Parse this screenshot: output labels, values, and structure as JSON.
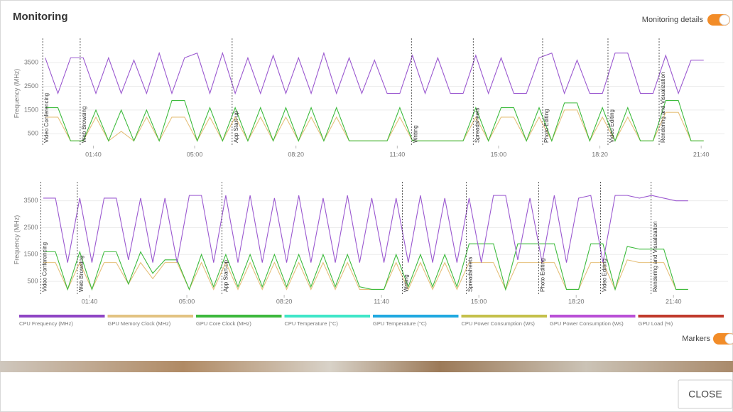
{
  "header": {
    "title": "Monitoring"
  },
  "monitoring_details": {
    "label": "Monitoring details",
    "on": true
  },
  "chart_data": [
    {
      "type": "line",
      "y_label": "Frequency (MHz)",
      "grid": true,
      "xlim": [
        -3,
        1346
      ],
      "ylim": [
        0,
        4400
      ],
      "yticks": [
        500,
        1500,
        2500,
        3500
      ],
      "xticks": [
        {
          "value": 100,
          "label": "01:40"
        },
        {
          "value": 300,
          "label": "05:00"
        },
        {
          "value": 500,
          "label": "08:20"
        },
        {
          "value": 700,
          "label": "11:40"
        },
        {
          "value": 900,
          "label": "15:00"
        },
        {
          "value": 1100,
          "label": "18:20"
        },
        {
          "value": 1300,
          "label": "21:40"
        }
      ],
      "markers": [
        {
          "x": 0,
          "label": "Video Conferencing"
        },
        {
          "x": 74,
          "label": "Web Browsing"
        },
        {
          "x": 374,
          "label": "App Start-up"
        },
        {
          "x": 728,
          "label": "Writing"
        },
        {
          "x": 850,
          "label": "Spreadsheets"
        },
        {
          "x": 987,
          "label": "Photo Editing"
        },
        {
          "x": 1116,
          "label": "Video Editing"
        },
        {
          "x": 1217,
          "label": "Rendering and Visualization"
        }
      ],
      "x": [
        5,
        30,
        55,
        80,
        105,
        130,
        155,
        180,
        205,
        230,
        255,
        280,
        305,
        330,
        355,
        380,
        405,
        430,
        455,
        480,
        505,
        530,
        555,
        580,
        605,
        630,
        655,
        680,
        705,
        730,
        755,
        780,
        805,
        830,
        855,
        880,
        905,
        930,
        955,
        980,
        1005,
        1030,
        1055,
        1080,
        1105,
        1130,
        1155,
        1180,
        1205,
        1230,
        1255,
        1280,
        1305
      ],
      "series": [
        {
          "color": "#e6c07b",
          "values": [
            1200,
            1200,
            200,
            200,
            1200,
            200,
            600,
            200,
            1200,
            200,
            1200,
            1200,
            200,
            1200,
            200,
            1200,
            200,
            1200,
            200,
            1200,
            200,
            1200,
            200,
            1200,
            200,
            200,
            200,
            200,
            1200,
            200,
            200,
            200,
            200,
            200,
            1200,
            200,
            1200,
            1200,
            200,
            1200,
            200,
            1500,
            1500,
            200,
            1200,
            200,
            1200,
            200,
            200,
            1400,
            1400,
            200,
            200
          ]
        },
        {
          "color": "#3dbb3d",
          "values": [
            1600,
            1600,
            200,
            200,
            1500,
            200,
            1500,
            200,
            1500,
            200,
            1900,
            1900,
            200,
            1600,
            200,
            1600,
            200,
            1600,
            200,
            1600,
            200,
            1600,
            200,
            1600,
            200,
            200,
            200,
            200,
            1600,
            200,
            200,
            200,
            200,
            200,
            1600,
            200,
            1600,
            1600,
            200,
            1600,
            200,
            1800,
            1800,
            200,
            1600,
            200,
            1600,
            200,
            200,
            1900,
            1900,
            200,
            200
          ]
        },
        {
          "color": "#9b59d0",
          "values": [
            3700,
            2200,
            3700,
            3700,
            2200,
            3700,
            2200,
            3600,
            2200,
            3900,
            2200,
            3700,
            3900,
            2200,
            3900,
            2200,
            3700,
            2200,
            3800,
            2200,
            3700,
            2200,
            3900,
            2200,
            3700,
            2200,
            3600,
            2200,
            2200,
            3800,
            2200,
            3700,
            2200,
            2200,
            3800,
            2200,
            3700,
            2200,
            2200,
            3700,
            3900,
            2200,
            3600,
            2200,
            2200,
            3900,
            3900,
            2200,
            2200,
            3800,
            2200,
            3600,
            3600
          ]
        }
      ]
    },
    {
      "type": "line",
      "y_label": "Frequency (MHz)",
      "grid": true,
      "xlim": [
        0,
        1412
      ],
      "ylim": [
        0,
        4100
      ],
      "yticks": [
        500,
        1500,
        2500,
        3500
      ],
      "xticks": [
        {
          "value": 100,
          "label": "01:40"
        },
        {
          "value": 300,
          "label": "05:00"
        },
        {
          "value": 500,
          "label": "08:20"
        },
        {
          "value": 700,
          "label": "11:40"
        },
        {
          "value": 900,
          "label": "15:00"
        },
        {
          "value": 1100,
          "label": "18:20"
        },
        {
          "value": 1300,
          "label": "21:40"
        }
      ],
      "markers": [
        {
          "x": 0,
          "label": "Video Conferencing"
        },
        {
          "x": 75,
          "label": "Web Browsing"
        },
        {
          "x": 372,
          "label": "App Start-up"
        },
        {
          "x": 743,
          "label": "Writing"
        },
        {
          "x": 874,
          "label": "Spreadsheets"
        },
        {
          "x": 1023,
          "label": "Photo Editing"
        },
        {
          "x": 1150,
          "label": "Video Editing"
        },
        {
          "x": 1254,
          "label": "Rendering and Visualization"
        }
      ],
      "x": [
        5,
        30,
        55,
        80,
        105,
        130,
        155,
        180,
        205,
        230,
        255,
        280,
        305,
        330,
        355,
        380,
        405,
        430,
        455,
        480,
        505,
        530,
        555,
        580,
        605,
        630,
        655,
        680,
        705,
        730,
        755,
        780,
        805,
        830,
        855,
        880,
        905,
        930,
        955,
        980,
        1005,
        1030,
        1055,
        1080,
        1105,
        1130,
        1155,
        1180,
        1205,
        1230,
        1255,
        1280,
        1305,
        1330
      ],
      "series": [
        {
          "color": "#e6c07b",
          "values": [
            1200,
            1200,
            200,
            1200,
            200,
            1200,
            1200,
            400,
            1200,
            600,
            1200,
            1200,
            200,
            1200,
            200,
            1200,
            200,
            1200,
            200,
            1200,
            200,
            1200,
            200,
            1200,
            200,
            1200,
            200,
            200,
            200,
            1200,
            200,
            1200,
            200,
            1200,
            200,
            1200,
            1200,
            1200,
            200,
            1200,
            1200,
            1200,
            1200,
            200,
            200,
            1200,
            1200,
            200,
            1300,
            1200,
            1200,
            1200,
            200,
            200
          ]
        },
        {
          "color": "#3dbb3d",
          "values": [
            1600,
            1600,
            200,
            1600,
            200,
            1600,
            1600,
            400,
            1600,
            800,
            1300,
            1300,
            200,
            1500,
            300,
            1500,
            300,
            1500,
            300,
            1500,
            300,
            1500,
            300,
            1500,
            300,
            1500,
            300,
            200,
            200,
            1500,
            300,
            1500,
            300,
            1500,
            300,
            1900,
            1900,
            1900,
            200,
            1900,
            1900,
            1900,
            1900,
            200,
            200,
            1900,
            1900,
            200,
            1800,
            1700,
            1700,
            1700,
            200,
            200
          ]
        },
        {
          "color": "#9b59d0",
          "values": [
            3600,
            3600,
            1200,
            3600,
            1200,
            3600,
            3600,
            1300,
            3600,
            1200,
            3600,
            1200,
            3700,
            3700,
            1200,
            3700,
            1200,
            3700,
            1200,
            3600,
            1200,
            3700,
            1200,
            3600,
            1200,
            3700,
            1200,
            3600,
            1200,
            3600,
            1200,
            3700,
            1200,
            3600,
            1200,
            3600,
            1200,
            3700,
            3700,
            1300,
            3600,
            1200,
            3700,
            1200,
            3600,
            3700,
            1200,
            3700,
            3700,
            3600,
            3700,
            3600,
            3500,
            3500
          ]
        }
      ]
    }
  ],
  "legend": [
    {
      "name": "CPU Frequency (MHz)",
      "color": "#8e44c4"
    },
    {
      "name": "GPU Memory Clock (MHz)",
      "color": "#e2c281"
    },
    {
      "name": "GPU Core Clock (MHz)",
      "color": "#3cb83c"
    },
    {
      "name": "CPU Temperature (°C)",
      "color": "#3fe6c8"
    },
    {
      "name": "GPU Temperature (°C)",
      "color": "#1fa8e0"
    },
    {
      "name": "CPU Power Consumption (Ws)",
      "color": "#c4c04a"
    },
    {
      "name": "GPU Power Consumption (Ws)",
      "color": "#b94fd6"
    },
    {
      "name": "GPU Load (%)",
      "color": "#c0392b"
    }
  ],
  "markers_toggle": {
    "label": "Markers",
    "on": true
  },
  "close_button": {
    "label": "CLOSE"
  }
}
